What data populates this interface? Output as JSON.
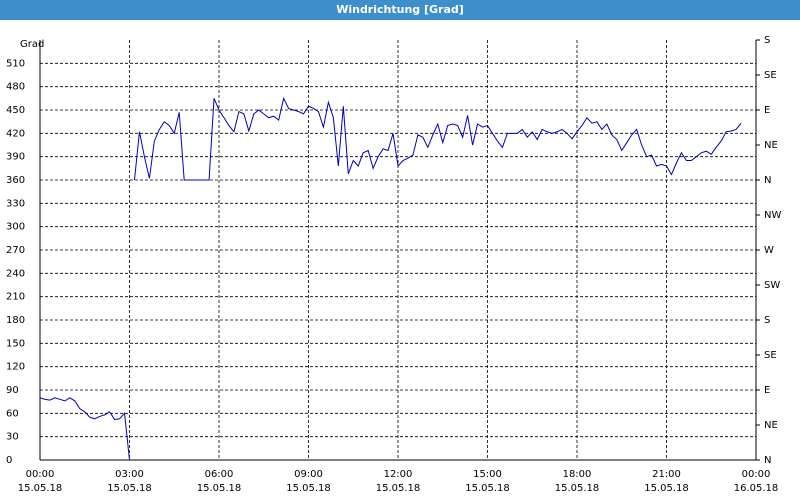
{
  "chart_data": {
    "type": "line",
    "title": "Windrichtung [Grad]",
    "y_label": "Grad",
    "color": "#0000c0",
    "grid": true,
    "x": [
      "15.05.18 00:00",
      "15.05.18 00:10",
      "15.05.18 00:20",
      "15.05.18 00:30",
      "15.05.18 00:40",
      "15.05.18 00:50",
      "15.05.18 01:00",
      "15.05.18 01:10",
      "15.05.18 01:20",
      "15.05.18 01:30",
      "15.05.18 01:40",
      "15.05.18 01:50",
      "15.05.18 02:00",
      "15.05.18 02:10",
      "15.05.18 02:20",
      "15.05.18 02:30",
      "15.05.18 02:40",
      "15.05.18 02:50",
      "15.05.18 03:00",
      "15.05.18 03:05",
      "15.05.18 03:10",
      "15.05.18 03:20",
      "15.05.18 03:30",
      "15.05.18 03:40",
      "15.05.18 03:50",
      "15.05.18 04:00",
      "15.05.18 04:10",
      "15.05.18 04:20",
      "15.05.18 04:30",
      "15.05.18 04:40",
      "15.05.18 04:50",
      "15.05.18 05:00",
      "15.05.18 05:10",
      "15.05.18 05:20",
      "15.05.18 05:30",
      "15.05.18 05:40",
      "15.05.18 05:50",
      "15.05.18 06:00",
      "15.05.18 06:10",
      "15.05.18 06:20",
      "15.05.18 06:30",
      "15.05.18 06:40",
      "15.05.18 06:50",
      "15.05.18 07:00",
      "15.05.18 07:10",
      "15.05.18 07:20",
      "15.05.18 07:30",
      "15.05.18 07:40",
      "15.05.18 07:50",
      "15.05.18 08:00",
      "15.05.18 08:10",
      "15.05.18 08:20",
      "15.05.18 08:30",
      "15.05.18 08:40",
      "15.05.18 08:50",
      "15.05.18 09:00",
      "15.05.18 09:10",
      "15.05.18 09:20",
      "15.05.18 09:30",
      "15.05.18 09:40",
      "15.05.18 09:50",
      "15.05.18 10:00",
      "15.05.18 10:10",
      "15.05.18 10:20",
      "15.05.18 10:30",
      "15.05.18 10:40",
      "15.05.18 10:50",
      "15.05.18 11:00",
      "15.05.18 11:10",
      "15.05.18 11:20",
      "15.05.18 11:30",
      "15.05.18 11:40",
      "15.05.18 11:50",
      "15.05.18 12:00",
      "15.05.18 12:10",
      "15.05.18 12:20",
      "15.05.18 12:30",
      "15.05.18 12:40",
      "15.05.18 12:50",
      "15.05.18 13:00",
      "15.05.18 13:10",
      "15.05.18 13:20",
      "15.05.18 13:30",
      "15.05.18 13:40",
      "15.05.18 13:50",
      "15.05.18 14:00",
      "15.05.18 14:10",
      "15.05.18 14:20",
      "15.05.18 14:30",
      "15.05.18 14:40",
      "15.05.18 14:50",
      "15.05.18 15:00",
      "15.05.18 15:10",
      "15.05.18 15:20",
      "15.05.18 15:30",
      "15.05.18 15:40",
      "15.05.18 15:50",
      "15.05.18 16:00",
      "15.05.18 16:10",
      "15.05.18 16:20",
      "15.05.18 16:30",
      "15.05.18 16:40",
      "15.05.18 16:50",
      "15.05.18 17:00",
      "15.05.18 17:10",
      "15.05.18 17:20",
      "15.05.18 17:30",
      "15.05.18 17:40",
      "15.05.18 17:50",
      "15.05.18 18:00",
      "15.05.18 18:10",
      "15.05.18 18:20",
      "15.05.18 18:30",
      "15.05.18 18:40",
      "15.05.18 18:50",
      "15.05.18 19:00",
      "15.05.18 19:10",
      "15.05.18 19:20",
      "15.05.18 19:30",
      "15.05.18 19:40",
      "15.05.18 19:50",
      "15.05.18 20:00",
      "15.05.18 20:10",
      "15.05.18 20:20",
      "15.05.18 20:30",
      "15.05.18 20:40",
      "15.05.18 20:50",
      "15.05.18 21:00",
      "15.05.18 21:10",
      "15.05.18 21:20",
      "15.05.18 21:30",
      "15.05.18 21:40",
      "15.05.18 21:50",
      "15.05.18 22:00",
      "15.05.18 22:10",
      "15.05.18 22:20",
      "15.05.18 22:30",
      "15.05.18 22:40",
      "15.05.18 22:50",
      "15.05.18 23:00",
      "15.05.18 23:10",
      "15.05.18 23:20",
      "15.05.18 23:30"
    ],
    "values": [
      80,
      78,
      77,
      80,
      78,
      76,
      80,
      76,
      66,
      62,
      55,
      53,
      56,
      58,
      62,
      52,
      53,
      60,
      0,
      null,
      360,
      422,
      390,
      362,
      410,
      425,
      435,
      430,
      420,
      447,
      360,
      360,
      360,
      360,
      360,
      360,
      465,
      450,
      440,
      430,
      422,
      448,
      445,
      423,
      445,
      450,
      445,
      440,
      442,
      437,
      465,
      452,
      450,
      448,
      445,
      455,
      452,
      448,
      428,
      460,
      440,
      378,
      455,
      368,
      385,
      378,
      395,
      398,
      375,
      390,
      400,
      398,
      420,
      378,
      385,
      388,
      392,
      418,
      415,
      402,
      418,
      432,
      408,
      430,
      432,
      430,
      415,
      443,
      405,
      432,
      428,
      430,
      420,
      410,
      402,
      420,
      420,
      420,
      425,
      415,
      422,
      412,
      425,
      422,
      420,
      422,
      425,
      420,
      413,
      422,
      430,
      440,
      433,
      435,
      425,
      432,
      418,
      412,
      398,
      408,
      418,
      425,
      405,
      390,
      392,
      378,
      380,
      378,
      367,
      382,
      395,
      385,
      385,
      390,
      395,
      397,
      393,
      402,
      410,
      422,
      423,
      425,
      433
    ],
    "xlim": [
      "15.05.18 00:00",
      "16.05.18 00:00"
    ],
    "xticks": [
      {
        "value": "15.05.18 00:00",
        "label": [
          "00:00",
          "15.05.18"
        ]
      },
      {
        "value": "15.05.18 03:00",
        "label": [
          "03:00",
          "15.05.18"
        ]
      },
      {
        "value": "15.05.18 06:00",
        "label": [
          "06:00",
          "15.05.18"
        ]
      },
      {
        "value": "15.05.18 09:00",
        "label": [
          "09:00",
          "15.05.18"
        ]
      },
      {
        "value": "15.05.18 12:00",
        "label": [
          "12:00",
          "15.05.18"
        ]
      },
      {
        "value": "15.05.18 15:00",
        "label": [
          "15:00",
          "15.05.18"
        ]
      },
      {
        "value": "15.05.18 18:00",
        "label": [
          "18:00",
          "15.05.18"
        ]
      },
      {
        "value": "15.05.18 21:00",
        "label": [
          "21:00",
          "15.05.18"
        ]
      },
      {
        "value": "16.05.18 00:00",
        "label": [
          "00:00",
          "16.05.18"
        ]
      }
    ],
    "ylim": [
      0,
      540
    ],
    "yticks": [
      0,
      30,
      60,
      90,
      120,
      150,
      180,
      210,
      240,
      270,
      300,
      330,
      360,
      390,
      420,
      450,
      480,
      510
    ],
    "y2lim": [
      0,
      540
    ],
    "y2ticks": [
      {
        "value": 0,
        "label": "N"
      },
      {
        "value": 45,
        "label": "NE"
      },
      {
        "value": 90,
        "label": "E"
      },
      {
        "value": 135,
        "label": "SE"
      },
      {
        "value": 180,
        "label": "S"
      },
      {
        "value": 225,
        "label": "SW"
      },
      {
        "value": 270,
        "label": "W"
      },
      {
        "value": 315,
        "label": "NW"
      },
      {
        "value": 360,
        "label": "N"
      },
      {
        "value": 405,
        "label": "NE"
      },
      {
        "value": 450,
        "label": "E"
      },
      {
        "value": 495,
        "label": "SE"
      },
      {
        "value": 540,
        "label": "S"
      }
    ]
  }
}
